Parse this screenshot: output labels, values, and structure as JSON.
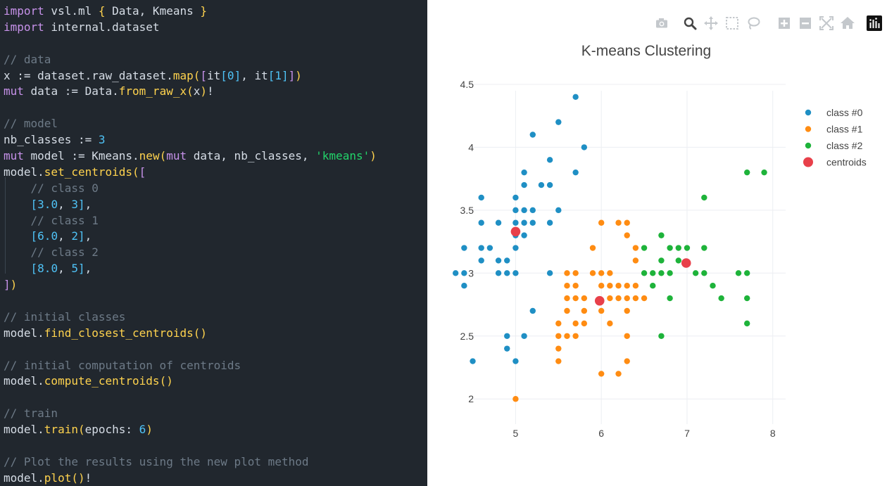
{
  "editor": {
    "lines": [
      [
        [
          "kw",
          "import"
        ],
        [
          "t",
          " vsl.ml "
        ],
        [
          "br1",
          "{"
        ],
        [
          "t",
          " Data, Kmeans "
        ],
        [
          "br1",
          "}"
        ]
      ],
      [
        [
          "kw",
          "import"
        ],
        [
          "t",
          " internal.dataset"
        ]
      ],
      [],
      [
        [
          "cm",
          "// data"
        ]
      ],
      [
        [
          "t",
          "x := dataset.raw_dataset."
        ],
        [
          "fn",
          "map"
        ],
        [
          "br1",
          "("
        ],
        [
          "br2",
          "["
        ],
        [
          "t",
          "it"
        ],
        [
          "br3",
          "["
        ],
        [
          "num",
          "0"
        ],
        [
          "br3",
          "]"
        ],
        [
          "t",
          ", it"
        ],
        [
          "br3",
          "["
        ],
        [
          "num",
          "1"
        ],
        [
          "br3",
          "]"
        ],
        [
          "br2",
          "]"
        ],
        [
          "br1",
          ")"
        ]
      ],
      [
        [
          "kw",
          "mut"
        ],
        [
          "t",
          " data := Data."
        ],
        [
          "fn",
          "from_raw_x"
        ],
        [
          "br1",
          "("
        ],
        [
          "t",
          "x"
        ],
        [
          "br1",
          ")"
        ],
        [
          "t",
          "!"
        ]
      ],
      [],
      [
        [
          "cm",
          "// model"
        ]
      ],
      [
        [
          "t",
          "nb_classes := "
        ],
        [
          "num",
          "3"
        ]
      ],
      [
        [
          "kw",
          "mut"
        ],
        [
          "t",
          " model := Kmeans."
        ],
        [
          "fn",
          "new"
        ],
        [
          "br1",
          "("
        ],
        [
          "kw",
          "mut"
        ],
        [
          "t",
          " data, nb_classes, "
        ],
        [
          "str",
          "'kmeans'"
        ],
        [
          "br1",
          ")"
        ]
      ],
      [
        [
          "t",
          "model."
        ],
        [
          "fn",
          "set_centroids"
        ],
        [
          "br1",
          "("
        ],
        [
          "br2",
          "["
        ]
      ],
      [
        [
          "cm",
          "    // class 0"
        ]
      ],
      [
        [
          "t",
          "    "
        ],
        [
          "br3",
          "["
        ],
        [
          "num",
          "3.0"
        ],
        [
          "t",
          ", "
        ],
        [
          "num",
          "3"
        ],
        [
          "br3",
          "]"
        ],
        [
          "t",
          ","
        ]
      ],
      [
        [
          "cm",
          "    // class 1"
        ]
      ],
      [
        [
          "t",
          "    "
        ],
        [
          "br3",
          "["
        ],
        [
          "num",
          "6.0"
        ],
        [
          "t",
          ", "
        ],
        [
          "num",
          "2"
        ],
        [
          "br3",
          "]"
        ],
        [
          "t",
          ","
        ]
      ],
      [
        [
          "cm",
          "    // class 2"
        ]
      ],
      [
        [
          "t",
          "    "
        ],
        [
          "br3",
          "["
        ],
        [
          "num",
          "8.0"
        ],
        [
          "t",
          ", "
        ],
        [
          "num",
          "5"
        ],
        [
          "br3",
          "]"
        ],
        [
          "t",
          ","
        ]
      ],
      [
        [
          "br2",
          "]"
        ],
        [
          "br1",
          ")"
        ]
      ],
      [],
      [
        [
          "cm",
          "// initial classes"
        ]
      ],
      [
        [
          "t",
          "model."
        ],
        [
          "fn",
          "find_closest_centroids"
        ],
        [
          "br1",
          "()"
        ]
      ],
      [],
      [
        [
          "cm",
          "// initial computation of centroids"
        ]
      ],
      [
        [
          "t",
          "model."
        ],
        [
          "fn",
          "compute_centroids"
        ],
        [
          "br1",
          "()"
        ]
      ],
      [],
      [
        [
          "cm",
          "// train"
        ]
      ],
      [
        [
          "t",
          "model."
        ],
        [
          "fn",
          "train"
        ],
        [
          "br1",
          "("
        ],
        [
          "t",
          "epochs: "
        ],
        [
          "num",
          "6"
        ],
        [
          "br1",
          ")"
        ]
      ],
      [],
      [
        [
          "cm",
          "// Plot the results using the new plot method"
        ]
      ],
      [
        [
          "t",
          "model."
        ],
        [
          "fn",
          "plot"
        ],
        [
          "br1",
          "()"
        ],
        [
          "t",
          "!"
        ]
      ]
    ]
  },
  "toolbar": {
    "buttons": [
      "camera-icon",
      "zoom-icon",
      "pan-icon",
      "box-select-icon",
      "lasso-select-icon",
      "zoom-in-icon",
      "zoom-out-icon",
      "autoscale-icon",
      "reset-axes-icon",
      "plotly-logo-icon"
    ]
  },
  "colors": {
    "class0": "#1f8fc4",
    "class1": "#ff8c12",
    "class2": "#1eb33a",
    "centroids": "#e8404a"
  },
  "chart_data": {
    "type": "scatter",
    "title": "K-means Clustering",
    "xlabel": "",
    "ylabel": "",
    "xlim": [
      4.2,
      8.15
    ],
    "ylim": [
      1.8,
      4.55
    ],
    "xticks": [
      "5",
      "6",
      "7",
      "8"
    ],
    "yticks": [
      "2",
      "2.5",
      "3",
      "3.5",
      "4",
      "4.5"
    ],
    "grid": true,
    "legend_position": "top-right",
    "series": [
      {
        "name": "class #0",
        "marker": "class0",
        "points": [
          [
            4.3,
            3.0
          ],
          [
            4.4,
            2.9
          ],
          [
            4.4,
            3.0
          ],
          [
            4.4,
            3.2
          ],
          [
            4.5,
            2.3
          ],
          [
            4.6,
            3.1
          ],
          [
            4.6,
            3.2
          ],
          [
            4.6,
            3.4
          ],
          [
            4.6,
            3.6
          ],
          [
            4.7,
            3.2
          ],
          [
            4.8,
            3.0
          ],
          [
            4.8,
            3.1
          ],
          [
            4.8,
            3.4
          ],
          [
            4.9,
            2.4
          ],
          [
            4.9,
            2.5
          ],
          [
            4.9,
            3.0
          ],
          [
            4.9,
            3.1
          ],
          [
            5.0,
            2.3
          ],
          [
            5.0,
            3.0
          ],
          [
            5.0,
            3.2
          ],
          [
            5.0,
            3.3
          ],
          [
            5.0,
            3.4
          ],
          [
            5.0,
            3.5
          ],
          [
            5.0,
            3.6
          ],
          [
            5.1,
            2.5
          ],
          [
            5.1,
            3.3
          ],
          [
            5.1,
            3.4
          ],
          [
            5.1,
            3.5
          ],
          [
            5.1,
            3.7
          ],
          [
            5.1,
            3.8
          ],
          [
            5.2,
            2.7
          ],
          [
            5.2,
            3.4
          ],
          [
            5.2,
            3.5
          ],
          [
            5.2,
            4.1
          ],
          [
            5.3,
            3.7
          ],
          [
            5.4,
            3.0
          ],
          [
            5.4,
            3.4
          ],
          [
            5.4,
            3.7
          ],
          [
            5.4,
            3.9
          ],
          [
            5.5,
            3.5
          ],
          [
            5.5,
            4.2
          ],
          [
            5.7,
            3.8
          ],
          [
            5.7,
            4.4
          ],
          [
            5.8,
            4.0
          ]
        ]
      },
      {
        "name": "class #1",
        "marker": "class1",
        "points": [
          [
            5.0,
            2.0
          ],
          [
            5.5,
            2.3
          ],
          [
            5.5,
            2.4
          ],
          [
            5.5,
            2.5
          ],
          [
            5.5,
            2.6
          ],
          [
            5.6,
            2.5
          ],
          [
            5.6,
            2.7
          ],
          [
            5.6,
            2.8
          ],
          [
            5.6,
            2.9
          ],
          [
            5.6,
            3.0
          ],
          [
            5.7,
            2.5
          ],
          [
            5.7,
            2.6
          ],
          [
            5.7,
            2.8
          ],
          [
            5.7,
            2.9
          ],
          [
            5.7,
            3.0
          ],
          [
            5.8,
            2.6
          ],
          [
            5.8,
            2.7
          ],
          [
            5.8,
            2.8
          ],
          [
            5.9,
            3.0
          ],
          [
            5.9,
            3.2
          ],
          [
            6.0,
            2.2
          ],
          [
            6.0,
            2.7
          ],
          [
            6.0,
            2.9
          ],
          [
            6.0,
            3.0
          ],
          [
            6.0,
            3.4
          ],
          [
            6.1,
            2.6
          ],
          [
            6.1,
            2.8
          ],
          [
            6.1,
            2.9
          ],
          [
            6.1,
            3.0
          ],
          [
            6.2,
            2.2
          ],
          [
            6.2,
            2.8
          ],
          [
            6.2,
            2.9
          ],
          [
            6.2,
            3.4
          ],
          [
            6.3,
            2.3
          ],
          [
            6.3,
            2.5
          ],
          [
            6.3,
            2.7
          ],
          [
            6.3,
            2.8
          ],
          [
            6.3,
            2.9
          ],
          [
            6.3,
            3.3
          ],
          [
            6.3,
            3.4
          ],
          [
            6.4,
            2.8
          ],
          [
            6.4,
            2.9
          ],
          [
            6.4,
            3.1
          ],
          [
            6.4,
            3.2
          ],
          [
            6.5,
            2.8
          ]
        ]
      },
      {
        "name": "class #2",
        "marker": "class2",
        "points": [
          [
            6.5,
            3.0
          ],
          [
            6.5,
            3.2
          ],
          [
            6.6,
            2.9
          ],
          [
            6.6,
            3.0
          ],
          [
            6.7,
            2.5
          ],
          [
            6.7,
            3.0
          ],
          [
            6.7,
            3.1
          ],
          [
            6.7,
            3.3
          ],
          [
            6.8,
            2.8
          ],
          [
            6.8,
            3.0
          ],
          [
            6.8,
            3.2
          ],
          [
            6.9,
            3.1
          ],
          [
            6.9,
            3.2
          ],
          [
            7.0,
            3.2
          ],
          [
            7.1,
            3.0
          ],
          [
            7.2,
            3.0
          ],
          [
            7.2,
            3.2
          ],
          [
            7.2,
            3.6
          ],
          [
            7.3,
            2.9
          ],
          [
            7.4,
            2.8
          ],
          [
            7.6,
            3.0
          ],
          [
            7.7,
            2.6
          ],
          [
            7.7,
            2.8
          ],
          [
            7.7,
            3.0
          ],
          [
            7.7,
            3.8
          ],
          [
            7.9,
            3.8
          ]
        ]
      },
      {
        "name": "centroids",
        "marker": "centroids",
        "points": [
          [
            5.0,
            3.33
          ],
          [
            5.98,
            2.78
          ],
          [
            6.99,
            3.08
          ]
        ]
      }
    ]
  }
}
